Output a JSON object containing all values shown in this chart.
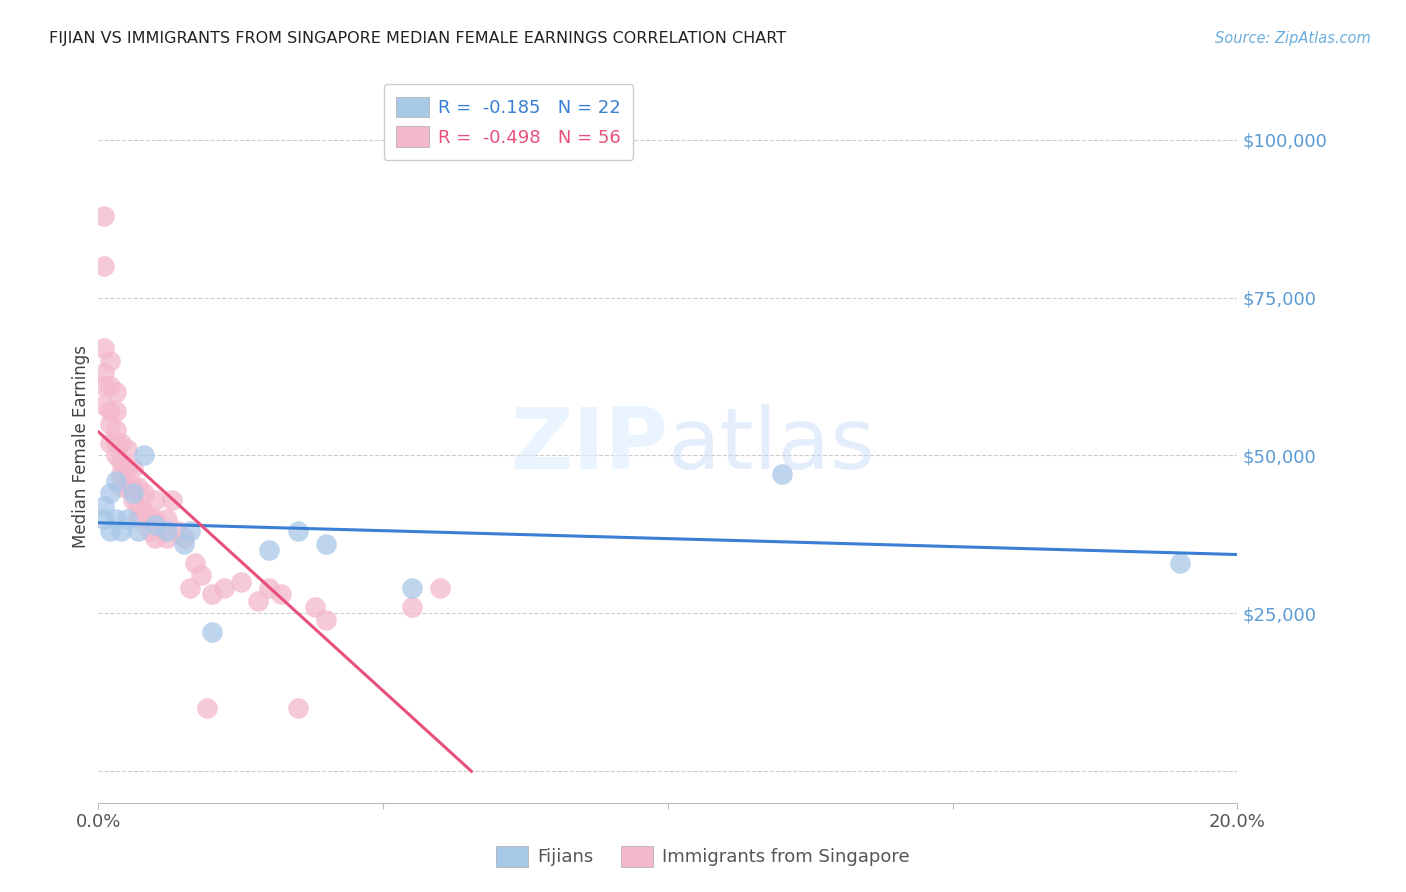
{
  "title": "FIJIAN VS IMMIGRANTS FROM SINGAPORE MEDIAN FEMALE EARNINGS CORRELATION CHART",
  "source": "Source: ZipAtlas.com",
  "ylabel_label": "Median Female Earnings",
  "xlim": [
    0.0,
    0.2
  ],
  "ylim": [
    -5000,
    108000
  ],
  "yticks": [
    0,
    25000,
    50000,
    75000,
    100000
  ],
  "ytick_labels": [
    "",
    "$25,000",
    "$50,000",
    "$75,000",
    "$100,000"
  ],
  "xtick_positions": [
    0.0,
    0.05,
    0.1,
    0.15,
    0.2
  ],
  "xtick_labels": [
    "0.0%",
    "",
    "",
    "",
    "20.0%"
  ],
  "background_color": "#ffffff",
  "grid_color": "#cccccc",
  "blue_scatter_color": "#a8c8e8",
  "pink_scatter_color": "#f4b8cc",
  "blue_line_color": "#3a7fd5",
  "pink_line_color": "#e8507a",
  "watermark_color": "#ddeeff",
  "legend_R_blue": "-0.185",
  "legend_N_blue": "22",
  "legend_R_pink": "-0.498",
  "legend_N_pink": "56",
  "fijians_x": [
    0.001,
    0.001,
    0.002,
    0.002,
    0.003,
    0.003,
    0.004,
    0.005,
    0.006,
    0.007,
    0.008,
    0.01,
    0.012,
    0.015,
    0.016,
    0.02,
    0.03,
    0.035,
    0.04,
    0.055,
    0.12,
    0.19
  ],
  "fijians_y": [
    42000,
    40000,
    44000,
    38000,
    46000,
    40000,
    38000,
    40000,
    44000,
    38000,
    50000,
    39000,
    38000,
    36000,
    38000,
    22000,
    35000,
    38000,
    36000,
    29000,
    47000,
    33000
  ],
  "singapore_x": [
    0.001,
    0.001,
    0.001,
    0.001,
    0.001,
    0.001,
    0.002,
    0.002,
    0.002,
    0.002,
    0.002,
    0.003,
    0.003,
    0.003,
    0.003,
    0.003,
    0.004,
    0.004,
    0.004,
    0.004,
    0.005,
    0.005,
    0.005,
    0.006,
    0.006,
    0.006,
    0.007,
    0.007,
    0.007,
    0.008,
    0.008,
    0.009,
    0.009,
    0.01,
    0.01,
    0.01,
    0.012,
    0.012,
    0.013,
    0.014,
    0.015,
    0.016,
    0.017,
    0.018,
    0.019,
    0.02,
    0.022,
    0.025,
    0.028,
    0.03,
    0.032,
    0.035,
    0.038,
    0.04,
    0.055,
    0.06
  ],
  "singapore_y": [
    88000,
    80000,
    67000,
    63000,
    61000,
    58000,
    65000,
    61000,
    57000,
    55000,
    52000,
    60000,
    57000,
    54000,
    52000,
    50000,
    52000,
    49000,
    47000,
    45000,
    51000,
    48000,
    45000,
    48000,
    45000,
    43000,
    45000,
    42000,
    40000,
    44000,
    41000,
    40000,
    38000,
    43000,
    40000,
    37000,
    40000,
    37000,
    43000,
    38000,
    37000,
    29000,
    33000,
    31000,
    10000,
    28000,
    29000,
    30000,
    27000,
    29000,
    28000,
    10000,
    26000,
    24000,
    26000,
    29000
  ],
  "blue_line_x": [
    0.0,
    0.2
  ],
  "blue_line_y": [
    38500,
    32000
  ],
  "pink_line_x_start": 0.0,
  "pink_line_x_end": 0.075,
  "pink_intercept": 55000,
  "pink_slope": -720000
}
